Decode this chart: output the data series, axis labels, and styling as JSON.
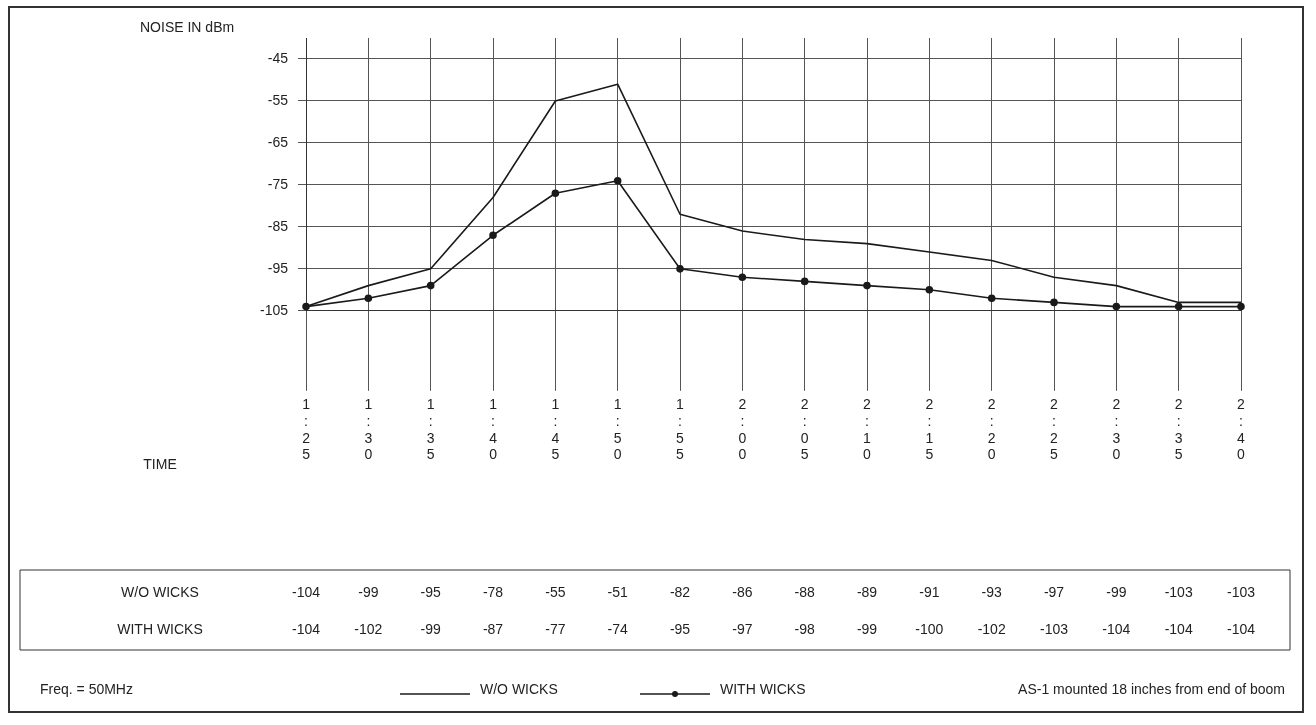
{
  "chart_data": {
    "type": "line",
    "ylabel": "NOISE IN dBm",
    "categories": [
      "1:25",
      "1:30",
      "1:35",
      "1:40",
      "1:45",
      "1:50",
      "1:55",
      "2:00",
      "2:05",
      "2:10",
      "2:15",
      "2:20",
      "2:25",
      "2:30",
      "2:35",
      "2:40"
    ],
    "series": [
      {
        "name": "W/O WICKS",
        "color": "#1a1a1a",
        "marker": "none",
        "values": [
          -104,
          -99,
          -95,
          -78,
          -55,
          -51,
          -82,
          -86,
          -88,
          -89,
          -91,
          -93,
          -97,
          -99,
          -103,
          -103
        ]
      },
      {
        "name": "WITH WICKS",
        "color": "#1a1a1a",
        "marker": "circle",
        "values": [
          -104,
          -102,
          -99,
          -87,
          -77,
          -74,
          -95,
          -97,
          -98,
          -99,
          -100,
          -102,
          -103,
          -104,
          -104,
          -104
        ]
      }
    ],
    "ylim": [
      -105,
      -40
    ],
    "yticks": [
      -105,
      -95,
      -85,
      -75,
      -65,
      -55,
      -45
    ],
    "grid": true,
    "legend": "bottom",
    "data_labels": true,
    "annotations": [
      "Freq. = 50MHz",
      "AS-1 mounted 18 inches from end of boom",
      "TIME"
    ]
  }
}
